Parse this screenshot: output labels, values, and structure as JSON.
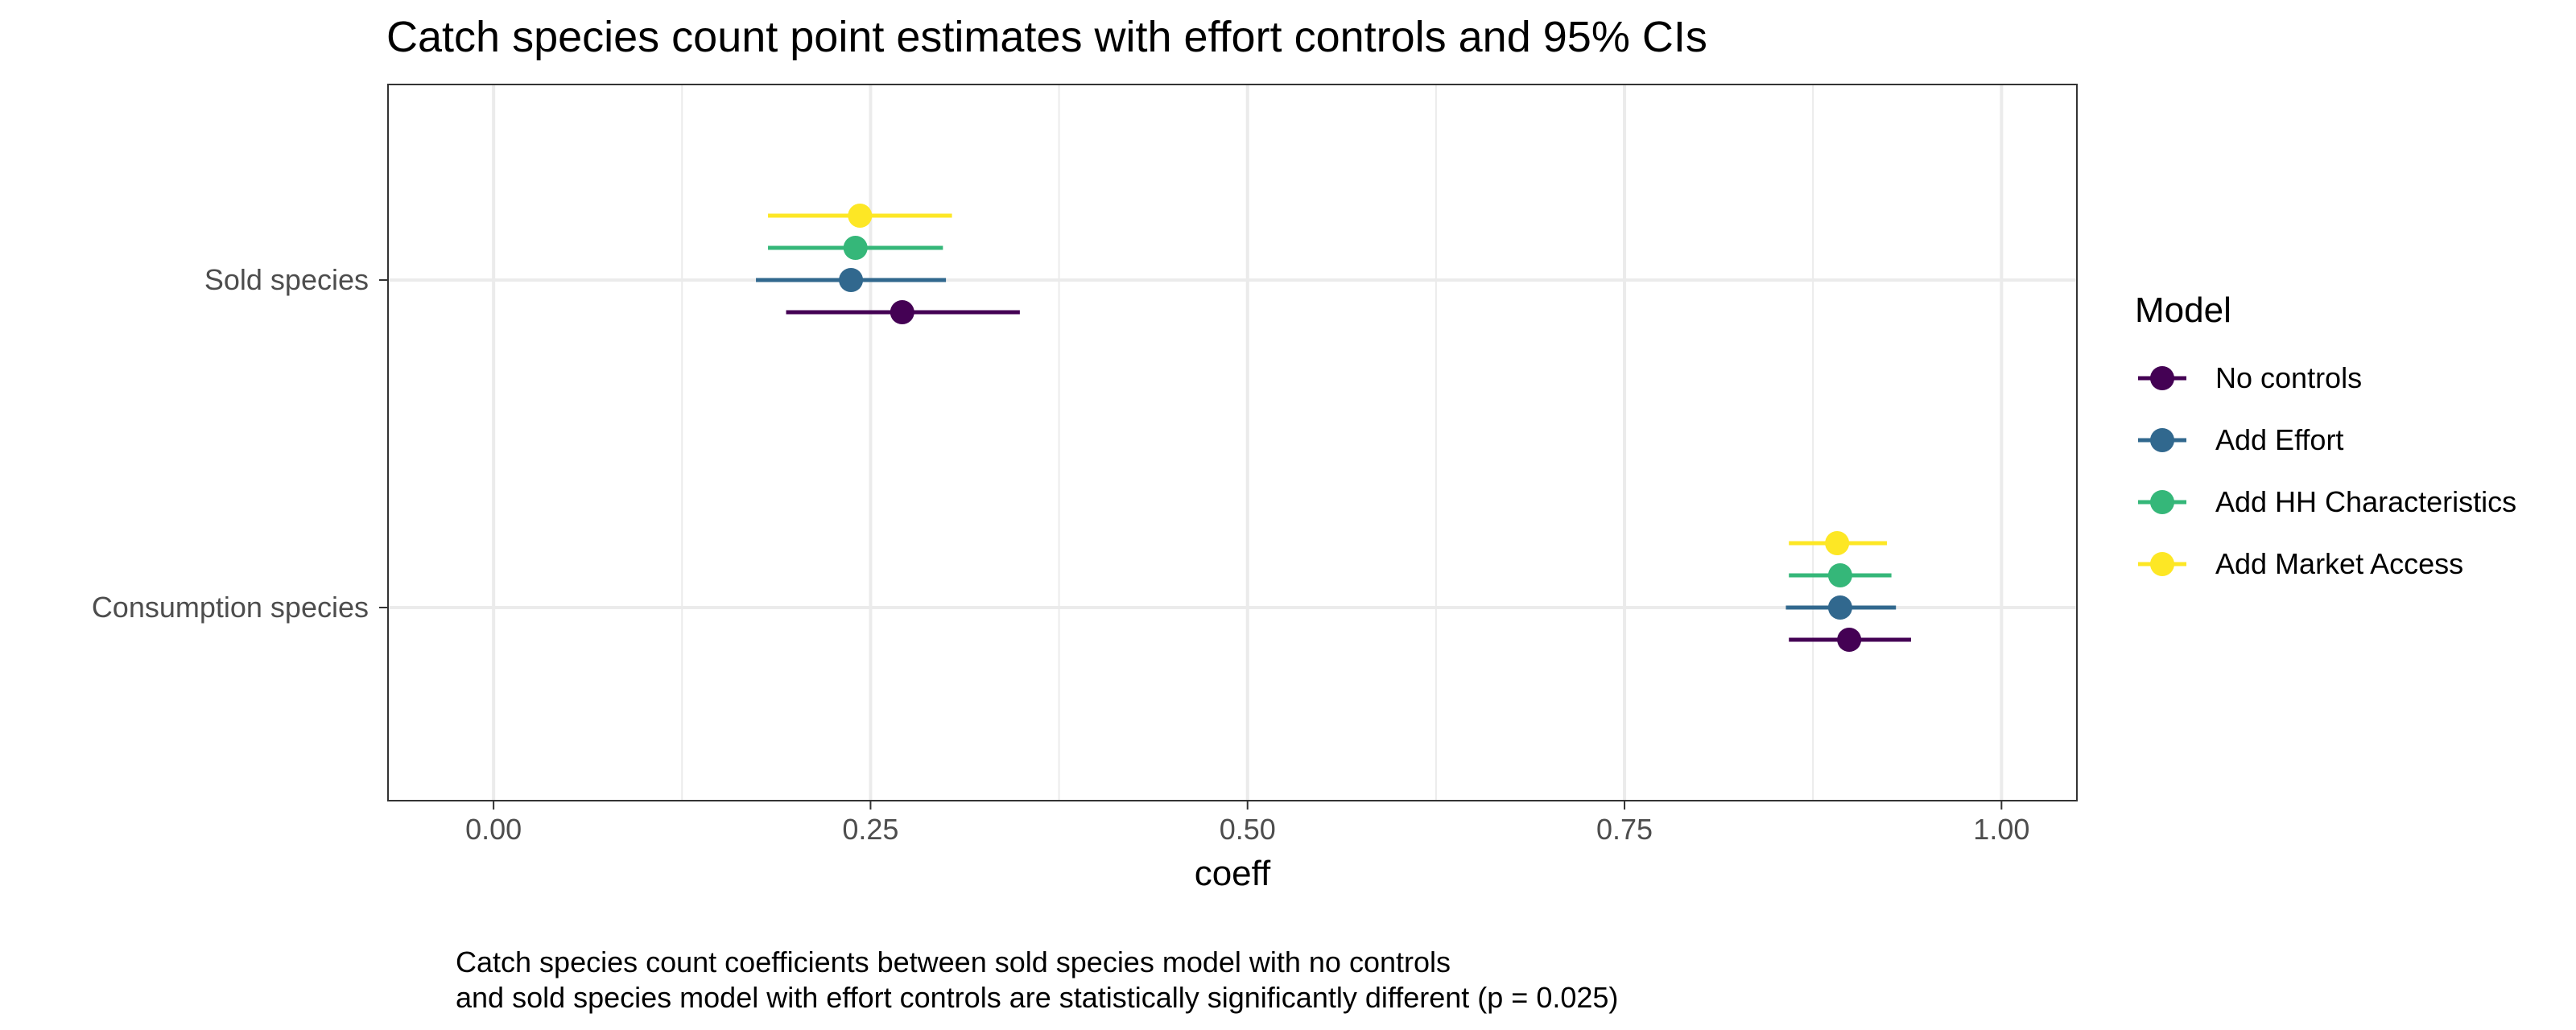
{
  "chart_data": {
    "type": "scatter",
    "title": "Catch species count point estimates with effort controls and 95% CIs",
    "xlabel": "coeff",
    "ylabel": "",
    "xlim": [
      -0.07,
      1.05
    ],
    "x_ticks": [
      "0.00",
      "0.25",
      "0.50",
      "0.75",
      "1.00"
    ],
    "categories": [
      "Sold species",
      "Consumption species"
    ],
    "grid": true,
    "legend": {
      "title": "Model",
      "placement": "right"
    },
    "series": [
      {
        "name": "No controls",
        "color": "#440154",
        "points": [
          {
            "category": "Sold species",
            "estimate": 0.271,
            "ci_low": 0.194,
            "ci_high": 0.349
          },
          {
            "category": "Consumption species",
            "estimate": 0.899,
            "ci_low": 0.859,
            "ci_high": 0.94
          }
        ]
      },
      {
        "name": "Add Effort",
        "color": "#31688e",
        "points": [
          {
            "category": "Sold species",
            "estimate": 0.237,
            "ci_low": 0.174,
            "ci_high": 0.3
          },
          {
            "category": "Consumption species",
            "estimate": 0.893,
            "ci_low": 0.857,
            "ci_high": 0.93
          }
        ]
      },
      {
        "name": "Add HH Characteristics",
        "color": "#35b779",
        "points": [
          {
            "category": "Sold species",
            "estimate": 0.24,
            "ci_low": 0.182,
            "ci_high": 0.298
          },
          {
            "category": "Consumption species",
            "estimate": 0.893,
            "ci_low": 0.859,
            "ci_high": 0.927
          }
        ]
      },
      {
        "name": "Add Market Access",
        "color": "#fde725",
        "points": [
          {
            "category": "Sold species",
            "estimate": 0.243,
            "ci_low": 0.182,
            "ci_high": 0.304
          },
          {
            "category": "Consumption species",
            "estimate": 0.891,
            "ci_low": 0.859,
            "ci_high": 0.924
          }
        ]
      }
    ],
    "caption": [
      "Catch species count coefficients between sold species model with no controls",
      "and sold species model with effort controls are statistically significantly different (p = 0.025)"
    ]
  }
}
